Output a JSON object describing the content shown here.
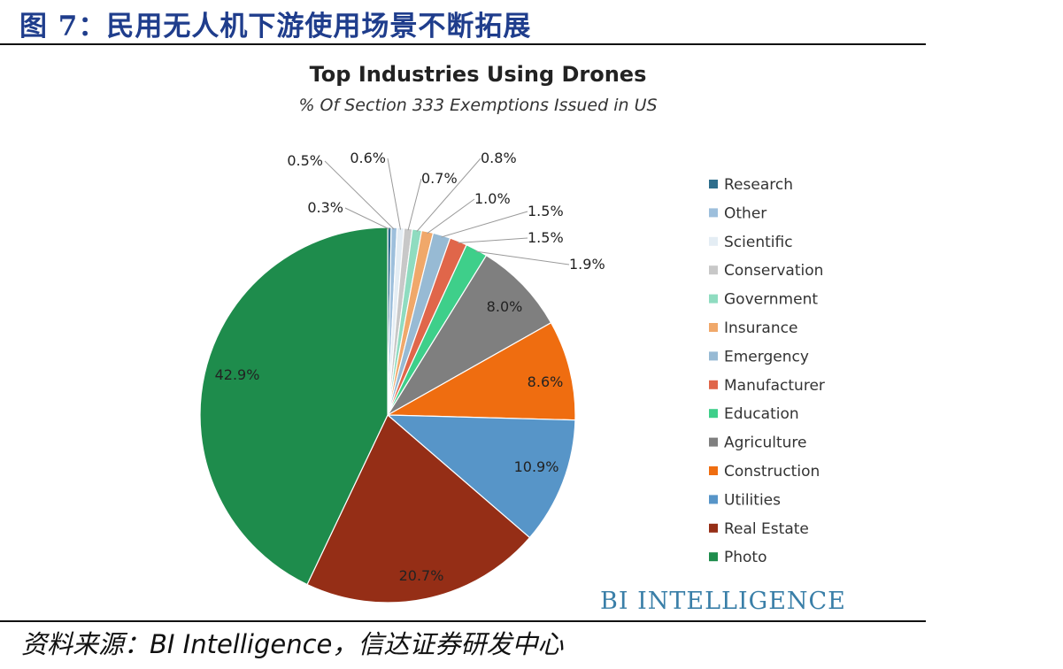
{
  "figure": {
    "caption": "图 7：民用无人机下游使用场景不断拓展",
    "source": "资料来源：BI Intelligence，信达证券研发中心"
  },
  "chart_data": {
    "type": "pie",
    "title": "Top Industries Using Drones",
    "subtitle": "% Of Section 333 Exemptions Issued in US",
    "watermark": "BI INTELLIGENCE",
    "legend_position": "right",
    "unit": "%",
    "slices": [
      {
        "label": "Research",
        "value": 0.3,
        "display": "0.3%",
        "color": "#2e6e8c"
      },
      {
        "label": "Other",
        "value": 0.5,
        "display": "0.5%",
        "color": "#9dbfdc"
      },
      {
        "label": "Scientific",
        "value": 0.6,
        "display": "0.6%",
        "color": "#e4edf4"
      },
      {
        "label": "Conservation",
        "value": 0.7,
        "display": "0.7%",
        "color": "#c8c8c8"
      },
      {
        "label": "Government",
        "value": 0.8,
        "display": "0.8%",
        "color": "#8fdcc0"
      },
      {
        "label": "Insurance",
        "value": 1.0,
        "display": "1.0%",
        "color": "#f0a86a"
      },
      {
        "label": "Emergency",
        "value": 1.5,
        "display": "1.5%",
        "color": "#97bad4"
      },
      {
        "label": "Manufacturer",
        "value": 1.5,
        "display": "1.5%",
        "color": "#e0664a"
      },
      {
        "label": "Education",
        "value": 1.9,
        "display": "1.9%",
        "color": "#3ecf8a"
      },
      {
        "label": "Agriculture",
        "value": 8.0,
        "display": "8.0%",
        "color": "#7f7f7f"
      },
      {
        "label": "Construction",
        "value": 8.6,
        "display": "8.6%",
        "color": "#ef6d10"
      },
      {
        "label": "Utilities",
        "value": 10.9,
        "display": "10.9%",
        "color": "#5795c8"
      },
      {
        "label": "Real Estate",
        "value": 20.7,
        "display": "20.7%",
        "color": "#952e16"
      },
      {
        "label": "Photo",
        "value": 42.9,
        "display": "42.9%",
        "color": "#1e8c4c"
      }
    ]
  }
}
